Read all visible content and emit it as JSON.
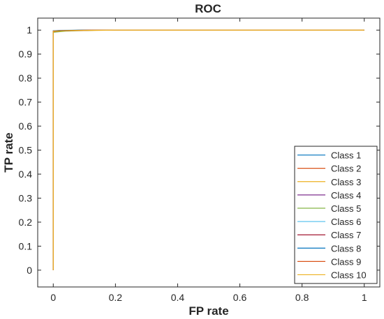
{
  "chart_data": {
    "type": "line",
    "title": "ROC",
    "xlabel": "FP rate",
    "ylabel": "TP rate",
    "xlim": [
      -0.05,
      1.05
    ],
    "ylim": [
      -0.07,
      1.05
    ],
    "xticks": [
      0,
      0.2,
      0.4,
      0.6,
      0.8,
      1
    ],
    "xtick_labels": [
      "0",
      "0.2",
      "0.4",
      "0.6",
      "0.8",
      "1"
    ],
    "yticks": [
      0,
      0.1,
      0.2,
      0.3,
      0.4,
      0.5,
      0.6,
      0.7,
      0.8,
      0.9,
      1
    ],
    "ytick_labels": [
      "0",
      "0.1",
      "0.2",
      "0.3",
      "0.4",
      "0.5",
      "0.6",
      "0.7",
      "0.8",
      "0.9",
      "1"
    ],
    "grid": false,
    "legend_position": "bottom-right",
    "series": [
      {
        "name": "Class 1",
        "color": "#0072BD",
        "x": [
          0,
          0,
          0.02,
          0.1,
          1
        ],
        "y": [
          0,
          0.997,
          0.998,
          1,
          1
        ]
      },
      {
        "name": "Class 2",
        "color": "#D95319",
        "x": [
          0,
          0,
          0.03,
          0.15,
          1
        ],
        "y": [
          0,
          0.996,
          0.998,
          1,
          1
        ]
      },
      {
        "name": "Class 3",
        "color": "#EDB120",
        "x": [
          0,
          0,
          0.05,
          0.2,
          1
        ],
        "y": [
          0,
          0.995,
          0.998,
          1,
          1
        ]
      },
      {
        "name": "Class 4",
        "color": "#7E2F8E",
        "x": [
          0,
          0,
          0.02,
          0.12,
          1
        ],
        "y": [
          0,
          0.996,
          0.998,
          1,
          1
        ]
      },
      {
        "name": "Class 5",
        "color": "#77AC30",
        "x": [
          0,
          0,
          0.04,
          0.15,
          1
        ],
        "y": [
          0,
          0.991,
          0.996,
          1,
          1
        ]
      },
      {
        "name": "Class 6",
        "color": "#4DBEEE",
        "x": [
          0,
          0,
          0.03,
          0.12,
          1
        ],
        "y": [
          0,
          0.996,
          0.998,
          1,
          1
        ]
      },
      {
        "name": "Class 7",
        "color": "#A2142F",
        "x": [
          0,
          0,
          0.03,
          0.15,
          1
        ],
        "y": [
          0,
          0.994,
          0.997,
          1,
          1
        ]
      },
      {
        "name": "Class 8",
        "color": "#0072BD",
        "x": [
          0,
          0,
          0.02,
          0.1,
          1
        ],
        "y": [
          0,
          0.997,
          0.999,
          1,
          1
        ]
      },
      {
        "name": "Class 9",
        "color": "#D95319",
        "x": [
          0,
          0,
          0.03,
          0.12,
          1
        ],
        "y": [
          0,
          0.996,
          0.998,
          1,
          1
        ]
      },
      {
        "name": "Class 10",
        "color": "#EDB120",
        "x": [
          0,
          0,
          0.05,
          0.2,
          1
        ],
        "y": [
          0,
          0.995,
          0.998,
          1,
          1
        ]
      }
    ]
  }
}
